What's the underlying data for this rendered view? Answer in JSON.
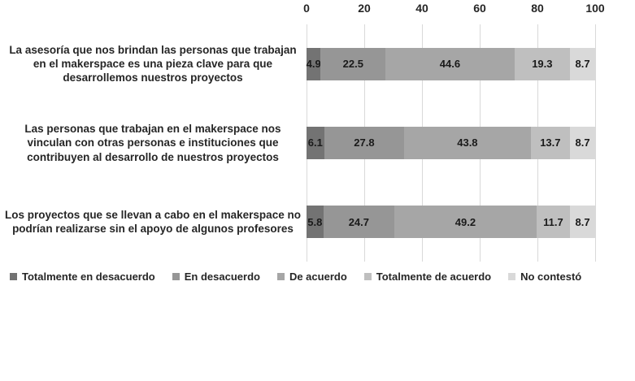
{
  "chart_data": {
    "type": "bar",
    "variant": "horizontal-stacked",
    "title": "",
    "xlabel": "",
    "ylabel": "",
    "x_axis": {
      "position": "top",
      "min": 0,
      "max": 100,
      "ticks": [
        0,
        20,
        40,
        60,
        80,
        100
      ]
    },
    "grid": true,
    "gridline_color": "#d9d9d9",
    "legend_position": "bottom",
    "value_labels": true,
    "text_color": "#262626",
    "categories": [
      "La asesoría que nos brindan las personas que trabajan en el makerspace es una pieza clave para que desarrollemos nuestros proyectos",
      "Las personas que trabajan en el makerspace nos vinculan con otras personas e instituciones que contribuyen al desarrollo de nuestros proyectos",
      "Los proyectos que se llevan a cabo en el makerspace no podrían realizarse sin el apoyo de algunos profesores"
    ],
    "series": [
      {
        "name": "Totalmente en desacuerdo",
        "color": "#737373",
        "values": [
          4.9,
          6.1,
          5.8
        ]
      },
      {
        "name": "En desacuerdo",
        "color": "#969696",
        "values": [
          22.5,
          27.8,
          24.7
        ]
      },
      {
        "name": "De acuerdo",
        "color": "#a6a6a6",
        "values": [
          44.6,
          43.8,
          49.2
        ]
      },
      {
        "name": "Totalmente de acuerdo",
        "color": "#bfbfbf",
        "values": [
          19.3,
          13.7,
          11.7
        ]
      },
      {
        "name": "No contestó",
        "color": "#d9d9d9",
        "values": [
          8.7,
          8.7,
          8.7
        ]
      }
    ]
  }
}
